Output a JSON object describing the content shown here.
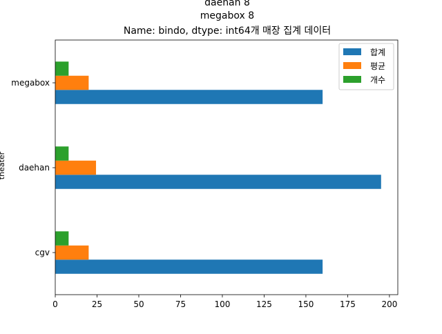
{
  "chart_data": {
    "type": "bar",
    "orientation": "horizontal",
    "title_lines": [
      "daehan      8",
      "megabox     8",
      "Name: bindo, dtype: int64개 매장 집계 데이터"
    ],
    "ylabel": "theater",
    "xlabel": "",
    "categories": [
      "cgv",
      "daehan",
      "megabox"
    ],
    "series": [
      {
        "name": "합계",
        "color": "#1f77b4",
        "values": [
          160,
          195,
          160
        ]
      },
      {
        "name": "평균",
        "color": "#ff7f0e",
        "values": [
          20,
          24.4,
          20
        ]
      },
      {
        "name": "개수",
        "color": "#2ca02c",
        "values": [
          8,
          8,
          8
        ]
      }
    ],
    "xlim": [
      0,
      205
    ],
    "xticks": [
      0,
      25,
      50,
      75,
      100,
      125,
      150,
      175,
      200
    ],
    "grid": false,
    "legend_position": "top-right"
  }
}
